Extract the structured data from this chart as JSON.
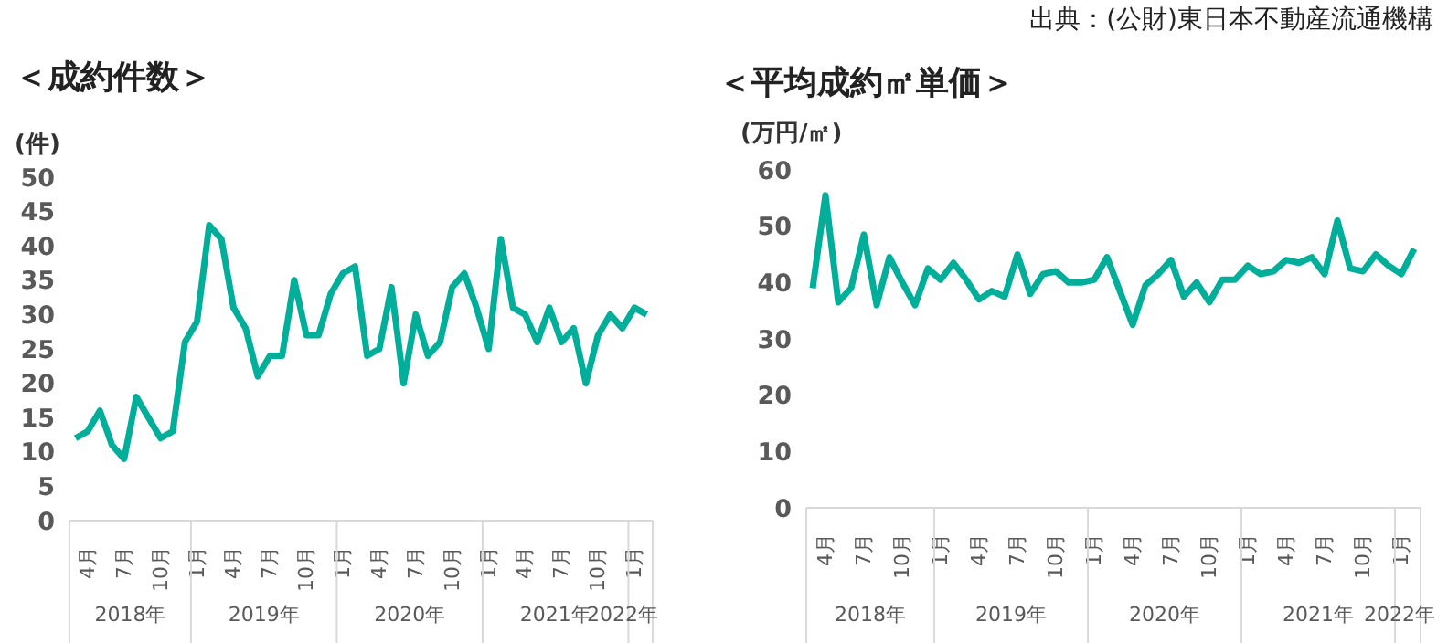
{
  "chart_data": [
    {
      "type": "line",
      "title": "＜成約件数＞",
      "ylabel": "(件)",
      "categories": [
        null,
        "4月",
        null,
        null,
        "7月",
        null,
        null,
        "10月",
        null,
        null,
        "1月",
        null,
        null,
        "4月",
        null,
        null,
        "7月",
        null,
        null,
        "10月",
        null,
        null,
        "1月",
        null,
        null,
        "4月",
        null,
        null,
        "7月",
        null,
        null,
        "10月",
        null,
        null,
        "1月",
        null,
        null,
        "4月",
        null,
        null,
        "7月",
        null,
        null,
        "10月",
        null,
        null,
        "1月",
        null
      ],
      "series": [
        {
          "color": "#00ae9a",
          "values": [
            12,
            13,
            16,
            11,
            9,
            18,
            15,
            12,
            13,
            26,
            29,
            43,
            41,
            31,
            28,
            21,
            24,
            24,
            35,
            27,
            27,
            33,
            36,
            37,
            24,
            25,
            34,
            20,
            30,
            24,
            26,
            34,
            36,
            31,
            25,
            41,
            31,
            30,
            26,
            31,
            26,
            28,
            20,
            27,
            30,
            28,
            31,
            30
          ]
        }
      ],
      "ylim": [
        0,
        50
      ],
      "yticks": [
        0,
        5,
        10,
        15,
        20,
        25,
        30,
        35,
        40,
        45,
        50
      ],
      "grid": false,
      "legend": false,
      "marker": "none",
      "line_style": "solid",
      "annotations": [
        "2018年",
        "2019年",
        "2020年",
        "2021年",
        "2022年"
      ]
    },
    {
      "type": "line",
      "title": "＜平均成約㎡単価＞",
      "ylabel": "(万円/㎡)",
      "categories": [
        null,
        "4月",
        null,
        null,
        "7月",
        null,
        null,
        "10月",
        null,
        null,
        "1月",
        null,
        null,
        "4月",
        null,
        null,
        "7月",
        null,
        null,
        "10月",
        null,
        null,
        "1月",
        null,
        null,
        "4月",
        null,
        null,
        "7月",
        null,
        null,
        "10月",
        null,
        null,
        "1月",
        null,
        null,
        "4月",
        null,
        null,
        "7月",
        null,
        null,
        "10月",
        null,
        null,
        "1月",
        null
      ],
      "series": [
        {
          "color": "#00ae9a",
          "values": [
            39,
            55.5,
            36.5,
            39,
            48.5,
            36,
            44.5,
            40,
            36,
            42.5,
            40.5,
            43.5,
            40.5,
            37,
            38.5,
            37.5,
            45,
            38,
            41.5,
            42,
            40,
            40,
            40.5,
            44.5,
            38.5,
            32.5,
            39.5,
            41.5,
            44,
            37.5,
            40,
            36.5,
            40.5,
            40.5,
            43,
            41.5,
            42,
            44,
            43.5,
            44.5,
            41.5,
            51,
            42.5,
            42,
            45,
            43,
            41.5,
            46
          ]
        }
      ],
      "ylim": [
        0,
        60
      ],
      "yticks": [
        0,
        10,
        20,
        30,
        40,
        50,
        60
      ],
      "grid": false,
      "legend": false,
      "marker": "none",
      "line_style": "solid",
      "annotations": [
        "2018年",
        "2019年",
        "2020年",
        "2021年",
        "2022年",
        "出典：(公財)東日本不動産流通機構"
      ]
    }
  ]
}
